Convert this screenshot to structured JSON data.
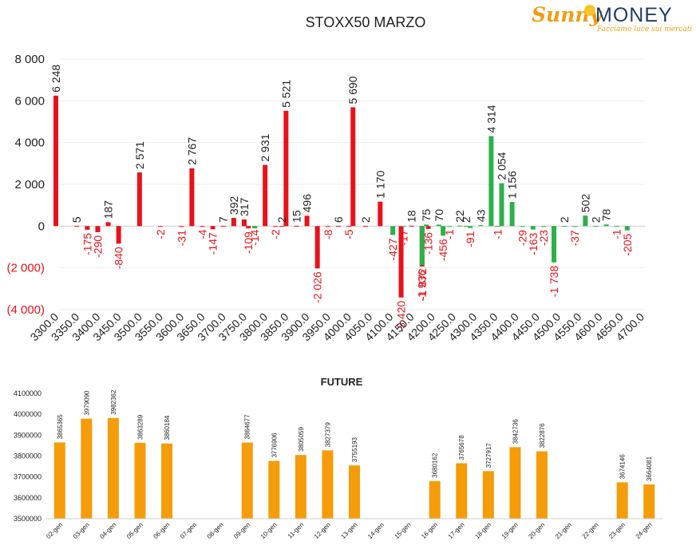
{
  "brand": {
    "name_part1": "Sunny",
    "name_part2": "MONEY",
    "tagline": "Facciamo luce sui mercati"
  },
  "colors": {
    "positive": "#2db04b",
    "negative": "#e8121a",
    "future": "#f59c0a",
    "text": "#222222",
    "neg_axis": "#e8121a"
  },
  "chart_data": [
    {
      "type": "bar",
      "title": "STOXX50 MARZO",
      "ylim": [
        -4000,
        8000
      ],
      "yticks": [
        -4000,
        -2000,
        0,
        2000,
        4000,
        6000,
        8000
      ],
      "ytick_labels": [
        "(4 000)",
        "(2 000)",
        "0",
        "2 000",
        "4 000",
        "6 000",
        "8 000"
      ],
      "xlim": [
        3300,
        4700
      ],
      "xticks": [
        3300,
        3350,
        3400,
        3450,
        3500,
        3550,
        3600,
        3650,
        3700,
        3750,
        3800,
        3850,
        3900,
        3950,
        4000,
        4050,
        4100,
        4150,
        4200,
        4250,
        4300,
        4350,
        4400,
        4450,
        4500,
        4550,
        4600,
        4650,
        4700
      ],
      "xtick_labels": [
        "3300.0",
        "3350.0",
        "3400.0",
        "3450.0",
        "3500.0",
        "3550.0",
        "3600.0",
        "3650.0",
        "3700.0",
        "3750.0",
        "3800.0",
        "3850.0",
        "3900.0",
        "3950.0",
        "4000.0",
        "4050.0",
        "4100.0",
        "4150.0",
        "4200.0",
        "4250.0",
        "4300.0",
        "4350.0",
        "4400.0",
        "4450.0",
        "4500.0",
        "4550.0",
        "4600.0",
        "4650.0",
        "4700.0"
      ],
      "series": [
        {
          "color": "negative",
          "points": [
            {
              "x": 3300,
              "y": 6248,
              "label": "6 248"
            },
            {
              "x": 3350,
              "y": 5,
              "label": "5"
            },
            {
              "x": 3375,
              "y": -175,
              "label": "-175"
            },
            {
              "x": 3400,
              "y": -290,
              "label": "-290"
            },
            {
              "x": 3425,
              "y": 187,
              "label": "187"
            },
            {
              "x": 3450,
              "y": -840,
              "label": "-840"
            },
            {
              "x": 3500,
              "y": 2571,
              "label": "2 571"
            },
            {
              "x": 3550,
              "y": -2,
              "label": "-2"
            },
            {
              "x": 3600,
              "y": -31,
              "label": "-31"
            },
            {
              "x": 3625,
              "y": 2767,
              "label": "2 767"
            },
            {
              "x": 3650,
              "y": -4,
              "label": "-4"
            },
            {
              "x": 3675,
              "y": -147,
              "label": "-147"
            },
            {
              "x": 3700,
              "y": 7,
              "label": "7"
            },
            {
              "x": 3725,
              "y": 392,
              "label": "392"
            },
            {
              "x": 3750,
              "y": 317,
              "label": "317"
            },
            {
              "x": 3760,
              "y": -109,
              "label": "-109"
            },
            {
              "x": 3775,
              "y": -14,
              "label": "-14"
            },
            {
              "x": 3800,
              "y": 2931,
              "label": "2 931"
            },
            {
              "x": 3825,
              "y": -2,
              "label": "-2"
            },
            {
              "x": 3840,
              "y": 2,
              "label": "2"
            },
            {
              "x": 3850,
              "y": 5521,
              "label": "5 521"
            },
            {
              "x": 3875,
              "y": 15,
              "label": "15"
            },
            {
              "x": 3900,
              "y": 496,
              "label": "496"
            },
            {
              "x": 3925,
              "y": -2026,
              "label": "-2 026"
            },
            {
              "x": 3950,
              "y": -8,
              "label": "-8"
            },
            {
              "x": 3975,
              "y": 6,
              "label": "6"
            },
            {
              "x": 4000,
              "y": -5,
              "label": "-5"
            },
            {
              "x": 4010,
              "y": 5690,
              "label": "5 690"
            },
            {
              "x": 4040,
              "y": 2,
              "label": "2"
            },
            {
              "x": 4075,
              "y": 1170,
              "label": "1 170"
            },
            {
              "x": 4125,
              "y": -3420,
              "label": "-3 420"
            },
            {
              "x": 4150,
              "y": 18,
              "label": "18"
            },
            {
              "x": 4175,
              "y": -1936,
              "label": "-1 936"
            },
            {
              "x": 4190,
              "y": -136,
              "label": "-136"
            }
          ]
        },
        {
          "color": "positive",
          "points": [
            {
              "x": 3760,
              "y": -109,
              "label": ""
            },
            {
              "x": 4090,
              "y": -427,
              "label": "-427"
            },
            {
              "x": 4115,
              "y": -17,
              "label": "-17"
            },
            {
              "x": 4160,
              "y": -1872,
              "label": "-1 872"
            },
            {
              "x": 4170,
              "y": 75,
              "label": "75"
            },
            {
              "x": 4200,
              "y": 70,
              "label": "70"
            },
            {
              "x": 4210,
              "y": -456,
              "label": "-456"
            },
            {
              "x": 4225,
              "y": -1,
              "label": "-1"
            },
            {
              "x": 4250,
              "y": 22,
              "label": "22"
            },
            {
              "x": 4265,
              "y": 2,
              "label": "2"
            },
            {
              "x": 4275,
              "y": -91,
              "label": "-91"
            },
            {
              "x": 4300,
              "y": 43,
              "label": "43"
            },
            {
              "x": 4325,
              "y": 4314,
              "label": "4 314"
            },
            {
              "x": 4340,
              "y": -1,
              "label": "-1"
            },
            {
              "x": 4350,
              "y": 2054,
              "label": "2 054"
            },
            {
              "x": 4375,
              "y": 1156,
              "label": "1 156"
            },
            {
              "x": 4400,
              "y": -29,
              "label": "-29"
            },
            {
              "x": 4425,
              "y": -163,
              "label": "-163"
            },
            {
              "x": 4450,
              "y": -23,
              "label": "-23"
            },
            {
              "x": 4475,
              "y": -1738,
              "label": "-1 738"
            },
            {
              "x": 4500,
              "y": 2,
              "label": "2"
            },
            {
              "x": 4525,
              "y": -37,
              "label": "-37"
            },
            {
              "x": 4550,
              "y": 502,
              "label": "502"
            },
            {
              "x": 4575,
              "y": 2,
              "label": "2"
            },
            {
              "x": 4600,
              "y": 78,
              "label": "78"
            },
            {
              "x": 4625,
              "y": -1,
              "label": "-1"
            },
            {
              "x": 4650,
              "y": -205,
              "label": "-205"
            }
          ]
        }
      ]
    },
    {
      "type": "bar",
      "title": "FUTURE",
      "ylim": [
        3500000,
        4100000
      ],
      "yticks": [
        3500000,
        3600000,
        3700000,
        3800000,
        3900000,
        4000000,
        4100000
      ],
      "ytick_labels": [
        "3500000",
        "3600000",
        "3700000",
        "3800000",
        "3900000",
        "4000000",
        "4100000"
      ],
      "categories": [
        "02-gen",
        "03-gen",
        "04-gen",
        "05-gen",
        "06-gen",
        "07-gen",
        "08-gen",
        "09-gen",
        "10-gen",
        "11-gen",
        "12-gen",
        "13-gen",
        "14-gen",
        "15-gen",
        "16-gen",
        "17-gen",
        "18-gen",
        "19-gen",
        "20-gen",
        "21-gen",
        "22-gen",
        "23-gen",
        "24-gen"
      ],
      "values": [
        3865365,
        3979090,
        3982362,
        3863289,
        3860184,
        null,
        null,
        3864677,
        3776906,
        3805059,
        3827379,
        3755193,
        null,
        null,
        3680162,
        3765678,
        3727917,
        3842736,
        3822876,
        null,
        null,
        3674146,
        3664081
      ],
      "value_labels": [
        "3865365",
        "3979090",
        "3982362",
        "3863289",
        "3860184",
        "",
        "",
        "3864677",
        "3776906",
        "3805059",
        "3827379",
        "3755193",
        "",
        "",
        "3680162",
        "3765678",
        "3727917",
        "3842736",
        "3822876",
        "",
        "",
        "3674146",
        "3664081"
      ]
    }
  ]
}
